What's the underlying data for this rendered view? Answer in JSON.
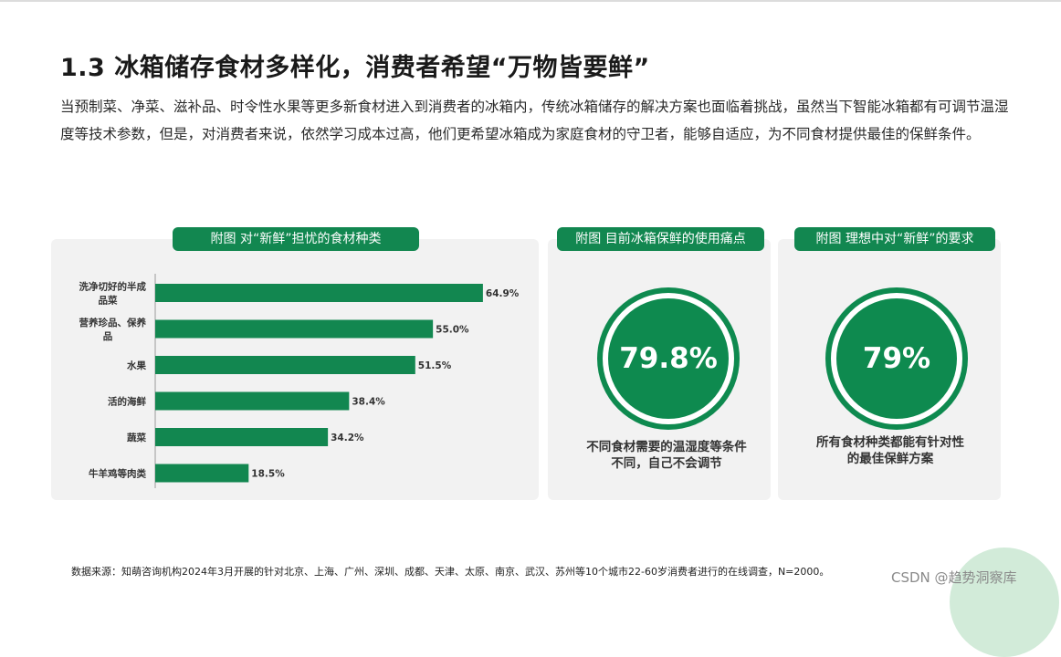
{
  "title": "1.3  冰箱储存食材多样化，消费者希望“万物皆要鲜”",
  "intro": "当预制菜、净菜、滋补品、时令性水果等更多新食材进入到消费者的冰箱内，传统冰箱储存的解决方案也面临着挑战，虽然当下智能冰箱都有可调节温湿度等技术参数，但是，对消费者来说，依然学习成本过高，他们更希望冰箱成为家庭食材的守卫者，能够自适应，为不同食材提供最佳的保鲜条件。",
  "panels": {
    "left_title": "附图 对“新鲜”担忧的食材种类",
    "mid_title": "附图 目前冰箱保鲜的使用痛点",
    "right_title": "附图 理想中对“新鲜”的要求",
    "mid_value": "79.8%",
    "mid_caption_line1": "不同食材需要的温湿度等条件",
    "mid_caption_line2": "不同，自己不会调节",
    "right_value": "79%",
    "right_caption_line1": "所有食材种类都能有针对性",
    "right_caption_line2": "的最佳保鲜方案"
  },
  "chart_data": {
    "type": "bar",
    "orientation": "horizontal",
    "title": "附图 对“新鲜”担忧的食材种类",
    "categories": [
      "洗净切好的半成品菜",
      "营养珍品、保养品",
      "水果",
      "活的海鲜",
      "蔬菜",
      "牛羊鸡等肉类"
    ],
    "category_lines": [
      [
        "洗净切好的半成",
        "品菜"
      ],
      [
        "营养珍品、保养",
        "品"
      ],
      [
        "水果"
      ],
      [
        "活的海鲜"
      ],
      [
        "蔬菜"
      ],
      [
        "牛羊鸡等肉类"
      ]
    ],
    "values": [
      64.9,
      55.0,
      51.5,
      38.4,
      34.2,
      18.5
    ],
    "value_labels": [
      "64.9%",
      "55.0%",
      "51.5%",
      "38.4%",
      "34.2%",
      "18.5%"
    ],
    "unit": "%",
    "bar_color": "#128750",
    "xlim": [
      0,
      100
    ],
    "grid": false,
    "legend": "none"
  },
  "colors": {
    "brand_green": "#128750",
    "panel_bg": "#f2f2f2"
  },
  "source": "数据来源：知萌咨询机构2024年3月开展的针对北京、上海、广州、深圳、成都、天津、太原、南京、武汉、苏州等10个城市22-60岁消费者进行的在线调查，N=2000。",
  "watermark": "CSDN @趋势洞察库"
}
